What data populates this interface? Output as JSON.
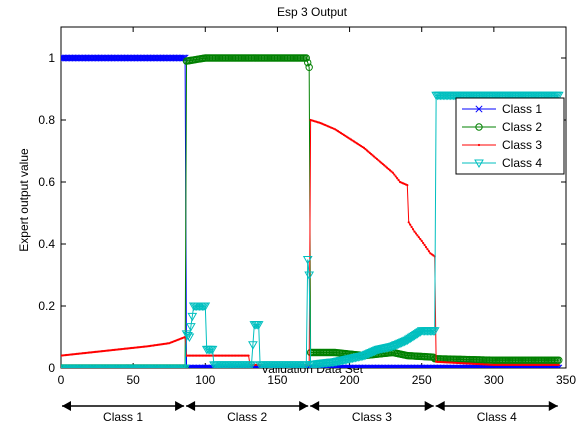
{
  "chart_data": {
    "type": "line",
    "title": "Esp 3 Output",
    "xlabel": "Validation Data Set",
    "ylabel": "Expert output value",
    "xlim": [
      0,
      350
    ],
    "ylim": [
      0,
      1.1
    ],
    "x_ticks": [
      "0",
      "50",
      "100",
      "150",
      "200",
      "250",
      "300",
      "350"
    ],
    "y_ticks": [
      "0",
      "0.2",
      "0.4",
      "0.6",
      "0.8",
      "1"
    ],
    "grid": false,
    "legend_position": "top-right",
    "series": [
      {
        "name": "Class 1",
        "color": "#0000ff",
        "marker": "x",
        "points": [
          [
            0,
            1.0
          ],
          [
            86,
            1.0
          ],
          [
            87,
            0.0
          ],
          [
            345,
            0.0
          ]
        ]
      },
      {
        "name": "Class 2",
        "color": "#008000",
        "marker": "o",
        "points": [
          [
            0,
            0.0
          ],
          [
            86,
            0.0
          ],
          [
            87,
            0.99
          ],
          [
            100,
            1.0
          ],
          [
            130,
            1.0
          ],
          [
            150,
            1.0
          ],
          [
            170,
            1.0
          ],
          [
            172,
            0.97
          ],
          [
            173,
            0.05
          ],
          [
            190,
            0.05
          ],
          [
            210,
            0.04
          ],
          [
            230,
            0.05
          ],
          [
            240,
            0.04
          ],
          [
            258,
            0.035
          ],
          [
            259,
            0.03
          ],
          [
            300,
            0.025
          ],
          [
            345,
            0.025
          ]
        ]
      },
      {
        "name": "Class 3",
        "color": "#ff0000",
        "marker": ".",
        "points": [
          [
            0,
            0.04
          ],
          [
            20,
            0.05
          ],
          [
            40,
            0.06
          ],
          [
            60,
            0.07
          ],
          [
            75,
            0.08
          ],
          [
            86,
            0.1
          ],
          [
            87,
            0.04
          ],
          [
            100,
            0.04
          ],
          [
            115,
            0.04
          ],
          [
            130,
            0.04
          ],
          [
            131,
            0.01
          ],
          [
            172,
            0.01
          ],
          [
            173,
            0.8
          ],
          [
            180,
            0.79
          ],
          [
            190,
            0.77
          ],
          [
            200,
            0.74
          ],
          [
            210,
            0.71
          ],
          [
            220,
            0.67
          ],
          [
            230,
            0.63
          ],
          [
            235,
            0.6
          ],
          [
            240,
            0.59
          ],
          [
            241,
            0.47
          ],
          [
            245,
            0.44
          ],
          [
            250,
            0.41
          ],
          [
            256,
            0.37
          ],
          [
            259,
            0.36
          ],
          [
            260,
            0.02
          ],
          [
            300,
            0.01
          ],
          [
            345,
            0.01
          ]
        ]
      },
      {
        "name": "Class 4",
        "color": "#00bfbf",
        "marker": "v",
        "points": [
          [
            0,
            0.0
          ],
          [
            86,
            0.0
          ],
          [
            87,
            0.11
          ],
          [
            89,
            0.1
          ],
          [
            92,
            0.2
          ],
          [
            100,
            0.2
          ],
          [
            101,
            0.06
          ],
          [
            105,
            0.06
          ],
          [
            106,
            0.01
          ],
          [
            132,
            0.01
          ],
          [
            134,
            0.14
          ],
          [
            137,
            0.14
          ],
          [
            138,
            0.01
          ],
          [
            170,
            0.01
          ],
          [
            171,
            0.35
          ],
          [
            172,
            0.3
          ],
          [
            173,
            0.01
          ],
          [
            180,
            0.015
          ],
          [
            190,
            0.02
          ],
          [
            200,
            0.03
          ],
          [
            210,
            0.04
          ],
          [
            220,
            0.06
          ],
          [
            230,
            0.07
          ],
          [
            240,
            0.09
          ],
          [
            250,
            0.12
          ],
          [
            259,
            0.12
          ],
          [
            260,
            0.88
          ],
          [
            345,
            0.88
          ]
        ]
      }
    ],
    "class_regions": [
      {
        "label": "Class 1",
        "from": 0,
        "to": 86
      },
      {
        "label": "Class 2",
        "from": 86,
        "to": 172
      },
      {
        "label": "Class 3",
        "from": 172,
        "to": 259
      },
      {
        "label": "Class 4",
        "from": 259,
        "to": 345
      }
    ]
  }
}
